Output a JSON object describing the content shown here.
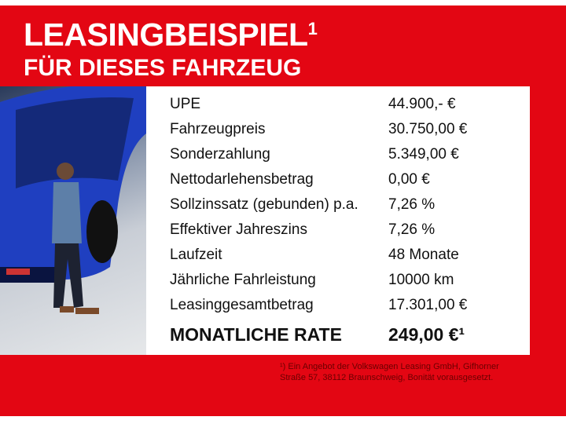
{
  "header": {
    "title": "LEASINGBEISPIEL",
    "title_sup": "1",
    "subtitle": "FÜR DIESES FAHRZEUG"
  },
  "rows": [
    {
      "label": "UPE",
      "value": "44.900,- €"
    },
    {
      "label": "Fahrzeugpreis",
      "value": "30.750,00 €"
    },
    {
      "label": "Sonderzahlung",
      "value": "5.349,00 €"
    },
    {
      "label": "Nettodarlehensbetrag",
      "value": "0,00 €"
    },
    {
      "label": "Sollzinssatz (gebunden) p.a.",
      "value": "7,26 %"
    },
    {
      "label": "Effektiver Jahreszins",
      "value": "7,26 %"
    },
    {
      "label": "Laufzeit",
      "value": "48 Monate"
    },
    {
      "label": "Jährliche Fahrleistung",
      "value": "10000 km"
    },
    {
      "label": "Leasinggesamtbetrag",
      "value": "17.301,00 €"
    }
  ],
  "rate": {
    "label": "MONATLICHE RATE",
    "value": "249,00 €¹"
  },
  "footnote": {
    "line1": "¹) Ein Angebot der Volkswagen Leasing GmbH, Gifhorner",
    "line2": "Straße 57, 38112 Braunschweig, Bonität vorausgesetzt."
  },
  "colors": {
    "brand_red": "#e30613",
    "car_blue": "#1f3fc0"
  }
}
